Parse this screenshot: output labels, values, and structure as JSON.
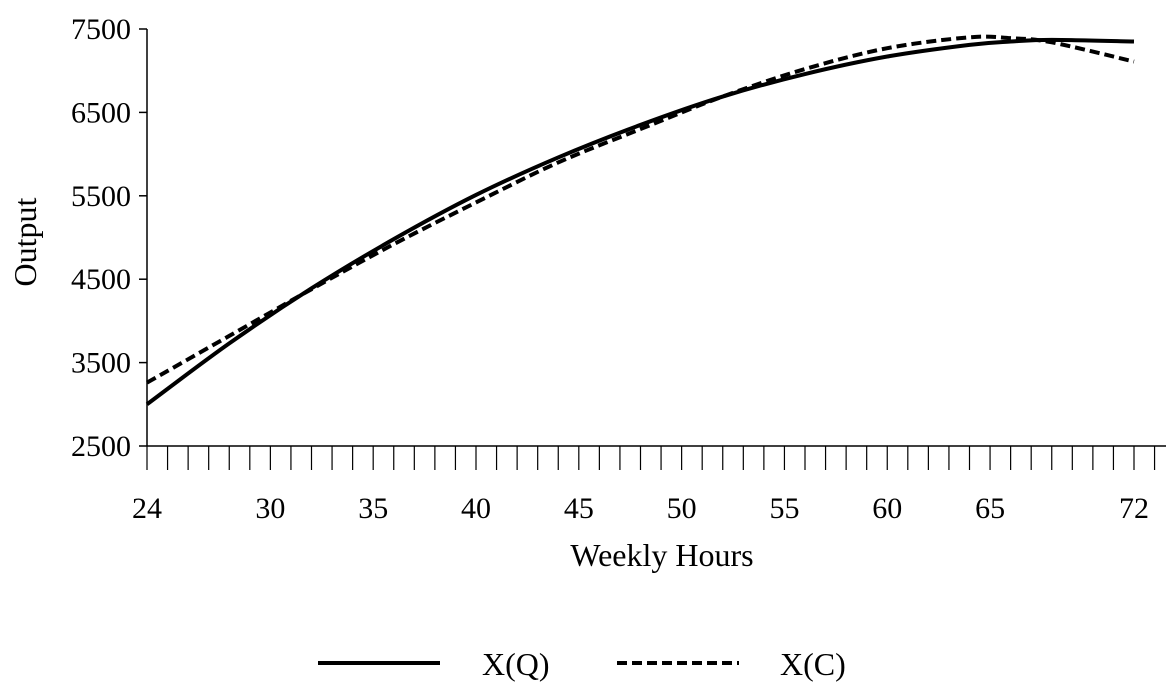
{
  "chart_data": {
    "type": "line",
    "title": "",
    "xlabel": "Weekly Hours",
    "ylabel": "Output",
    "xlim": [
      24,
      72
    ],
    "ylim": [
      2500,
      7500
    ],
    "x_ticks": [
      24,
      30,
      35,
      40,
      45,
      50,
      55,
      60,
      65,
      72
    ],
    "y_ticks": [
      2500,
      3500,
      4500,
      5500,
      6500,
      7500
    ],
    "minor_x_tick_step": 1,
    "grid": false,
    "legend_position": "bottom-center",
    "series": [
      {
        "name": "X(Q)",
        "style": "solid",
        "color": "#000000",
        "x": [
          24,
          28,
          32,
          36,
          40,
          44,
          48,
          52,
          56,
          60,
          64,
          66,
          68,
          72
        ],
        "y": [
          3000,
          3730,
          4390,
          4980,
          5510,
          5960,
          6350,
          6690,
          6960,
          7170,
          7310,
          7350,
          7370,
          7350
        ]
      },
      {
        "name": "X(C)",
        "style": "dashed",
        "color": "#000000",
        "x": [
          24,
          28,
          32,
          36,
          40,
          44,
          48,
          52,
          56,
          60,
          64,
          66,
          68,
          72
        ],
        "y": [
          3260,
          3820,
          4380,
          4920,
          5420,
          5900,
          6300,
          6690,
          7020,
          7270,
          7400,
          7390,
          7340,
          7110
        ]
      }
    ]
  }
}
